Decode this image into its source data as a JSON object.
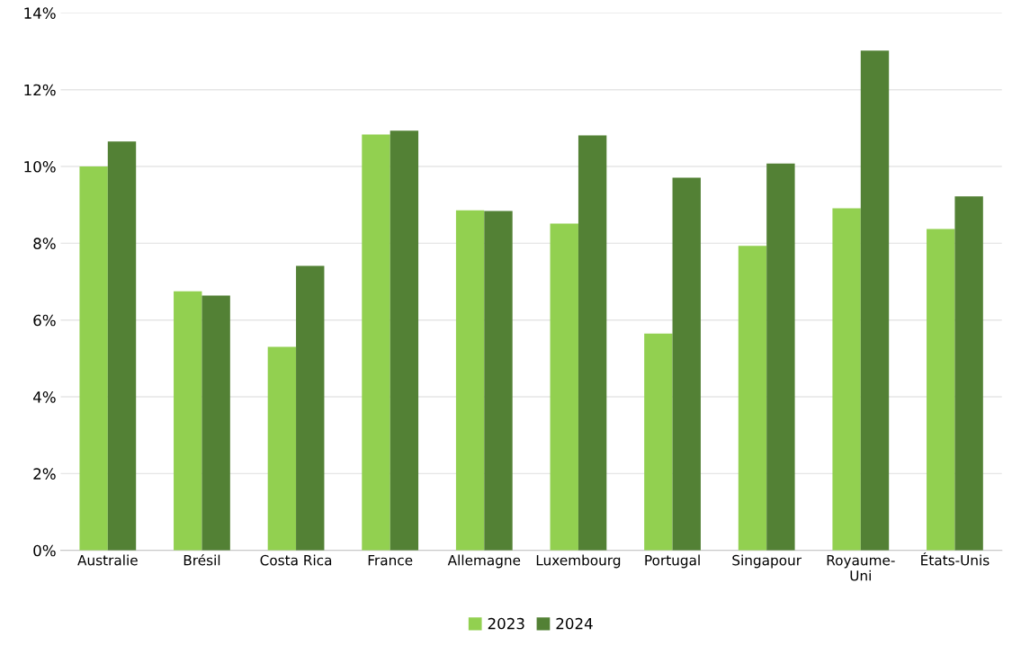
{
  "chart_data": {
    "type": "bar",
    "categories": [
      "Australie",
      "Brésil",
      "Costa Rica",
      "France",
      "Allemagne",
      "Luxembourg",
      "Portugal",
      "Singapour",
      "Royaume-\nUni",
      "États-Unis"
    ],
    "series": [
      {
        "name": "2023",
        "color": "#92d050",
        "values": [
          10.0,
          6.75,
          5.3,
          10.83,
          8.86,
          8.51,
          5.65,
          7.93,
          8.91,
          8.37
        ]
      },
      {
        "name": "2024",
        "color": "#538135",
        "values": [
          10.65,
          6.64,
          7.41,
          10.93,
          8.84,
          10.81,
          9.71,
          10.08,
          13.02,
          9.22
        ]
      }
    ],
    "ylim": [
      0,
      14
    ],
    "yticks": [
      {
        "value": 0,
        "label": "0%"
      },
      {
        "value": 2,
        "label": "2%"
      },
      {
        "value": 4,
        "label": "4%"
      },
      {
        "value": 6,
        "label": "6%"
      },
      {
        "value": 8,
        "label": "8%"
      },
      {
        "value": 10,
        "label": "10%"
      },
      {
        "value": 12,
        "label": "12%"
      },
      {
        "value": 14,
        "label": "14%"
      }
    ],
    "grid": "y",
    "legend": "bottom"
  }
}
